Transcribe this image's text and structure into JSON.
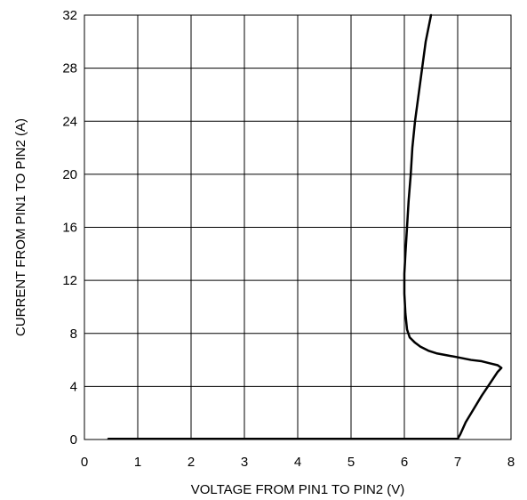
{
  "chart_data": {
    "type": "line",
    "title": "",
    "xlabel": "VOLTAGE FROM PIN1 TO PIN2 (V)",
    "ylabel": "CURRENT FROM PIN1 TO PIN2 (A)",
    "xlim": [
      0,
      8
    ],
    "ylim": [
      0,
      32
    ],
    "xticks": [
      0,
      1,
      2,
      3,
      4,
      5,
      6,
      7,
      8
    ],
    "yticks": [
      0,
      4,
      8,
      12,
      16,
      20,
      24,
      28,
      32
    ],
    "grid": true,
    "legend": "none",
    "series": [
      {
        "color": "#000000",
        "x": [
          0.45,
          1.0,
          2.0,
          3.0,
          4.0,
          5.0,
          6.0,
          6.7,
          7.0,
          7.05,
          7.15,
          7.3,
          7.45,
          7.6,
          7.75,
          7.82,
          7.75,
          7.6,
          7.45,
          7.25,
          7.0,
          6.8,
          6.6,
          6.45,
          6.3,
          6.2,
          6.1,
          6.05,
          6.02,
          6.0,
          6.0,
          6.02,
          6.05,
          6.08,
          6.12,
          6.15,
          6.2,
          6.25,
          6.3,
          6.35,
          6.4,
          6.45,
          6.5
        ],
        "y": [
          0.05,
          0.05,
          0.05,
          0.05,
          0.05,
          0.05,
          0.05,
          0.05,
          0.05,
          0.4,
          1.3,
          2.3,
          3.3,
          4.2,
          5.1,
          5.4,
          5.6,
          5.75,
          5.9,
          6.0,
          6.2,
          6.35,
          6.5,
          6.7,
          7.0,
          7.3,
          7.7,
          8.3,
          9.5,
          11.0,
          12.5,
          14.0,
          16.0,
          18.0,
          20.0,
          22.0,
          24.0,
          25.5,
          27.0,
          28.5,
          30.0,
          31.0,
          32.0
        ]
      }
    ]
  }
}
